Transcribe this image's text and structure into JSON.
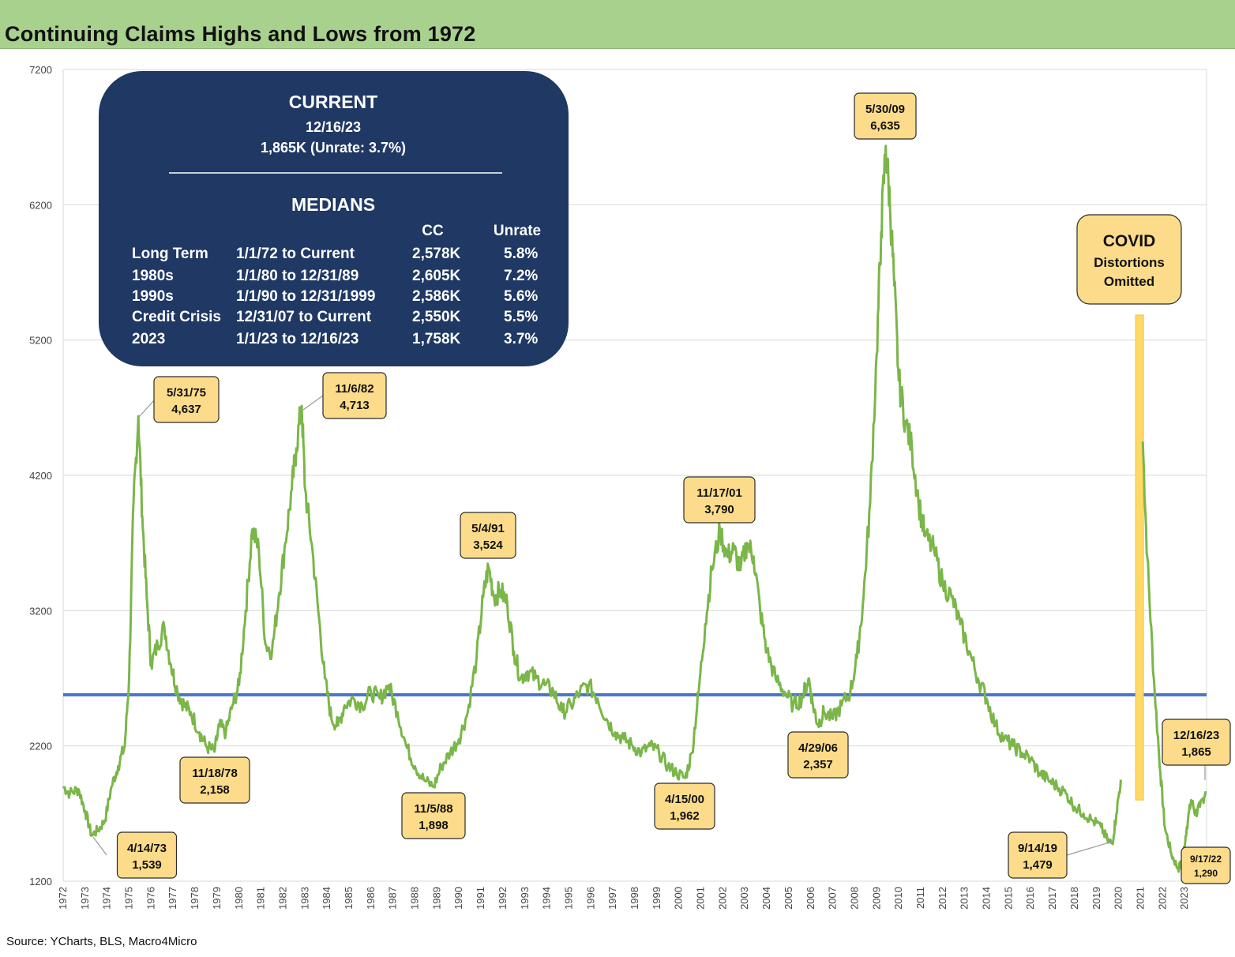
{
  "header": {
    "title": "Continuing Claims Highs and Lows from 1972"
  },
  "footer": {
    "source": "Source: YCharts, BLS, Macro4Micro"
  },
  "colors": {
    "line": "#7ab648",
    "median_line": "#4a72c4",
    "info_box": "#1f3864",
    "callout": "#fcdc8a",
    "title_bar": "#a9d18e"
  },
  "info_box": {
    "current_heading": "CURRENT",
    "current_date": "12/16/23",
    "current_value": "1,865K (Unrate: 3.7%)",
    "medians_heading": "MEDIANS",
    "col_cc": "CC",
    "col_unrate": "Unrate",
    "rows": [
      {
        "label": "Long Term",
        "period": "1/1/72 to Current",
        "cc": "2,578K",
        "unrate": "5.8%"
      },
      {
        "label": "1980s",
        "period": "1/1/80 to 12/31/89",
        "cc": "2,605K",
        "unrate": "7.2%"
      },
      {
        "label": "1990s",
        "period": "1/1/90 to 12/31/1999",
        "cc": "2,586K",
        "unrate": "5.6%"
      },
      {
        "label": "Credit Crisis",
        "period": "12/31/07 to Current",
        "cc": "2,550K",
        "unrate": "5.5%"
      },
      {
        "label": "2023",
        "period": "1/1/23 to 12/16/23",
        "cc": "1,758K",
        "unrate": "3.7%"
      }
    ]
  },
  "covid_note": {
    "line1": "COVID",
    "line2": "Distortions",
    "line3": "Omitted"
  },
  "annotations": [
    {
      "date": "4/14/73",
      "value": "1,539"
    },
    {
      "date": "5/31/75",
      "value": "4,637"
    },
    {
      "date": "11/18/78",
      "value": "2,158"
    },
    {
      "date": "11/6/82",
      "value": "4,713"
    },
    {
      "date": "11/5/88",
      "value": "1,898"
    },
    {
      "date": "5/4/91",
      "value": "3,524"
    },
    {
      "date": "4/15/00",
      "value": "1,962"
    },
    {
      "date": "11/17/01",
      "value": "3,790"
    },
    {
      "date": "4/29/06",
      "value": "2,357"
    },
    {
      "date": "5/30/09",
      "value": "6,635"
    },
    {
      "date": "9/14/19",
      "value": "1,479"
    },
    {
      "date": "9/17/22",
      "value": "1,290"
    },
    {
      "date": "12/16/23",
      "value": "1,865"
    }
  ],
  "chart_data": {
    "type": "line",
    "title": "Continuing Claims Highs and Lows from 1972",
    "ylim": [
      1200,
      7200
    ],
    "yticks": [
      1200,
      2200,
      3200,
      4200,
      5200,
      6200,
      7200
    ],
    "xlim": [
      1972,
      2024
    ],
    "xticks": [
      "1972",
      "1973",
      "1974",
      "1975",
      "1976",
      "1977",
      "1978",
      "1979",
      "1980",
      "1981",
      "1982",
      "1983",
      "1984",
      "1985",
      "1986",
      "1987",
      "1988",
      "1989",
      "1990",
      "1991",
      "1992",
      "1993",
      "1994",
      "1995",
      "1996",
      "1997",
      "1998",
      "1999",
      "2000",
      "2001",
      "2002",
      "2003",
      "2004",
      "2005",
      "2006",
      "2007",
      "2008",
      "2009",
      "2010",
      "2011",
      "2012",
      "2013",
      "2014",
      "2015",
      "2016",
      "2017",
      "2018",
      "2019",
      "2020",
      "2021",
      "2022",
      "2023"
    ],
    "median_line": 2578,
    "grid": "horizontal",
    "series": [
      {
        "x_pre": [
          1972.0,
          1972.3,
          1972.7,
          1973.0,
          1973.29,
          1973.6,
          1973.9,
          1974.2,
          1974.5,
          1974.8,
          1975.0,
          1975.2,
          1975.42,
          1975.6,
          1975.8,
          1976.0,
          1976.3,
          1976.6,
          1976.9,
          1977.2,
          1977.5,
          1977.8,
          1978.2,
          1978.5,
          1978.88,
          1979.1,
          1979.4,
          1979.7,
          1980.0,
          1980.3,
          1980.6,
          1980.9,
          1981.2,
          1981.5,
          1981.8,
          1982.1,
          1982.4,
          1982.6,
          1982.85,
          1983.0,
          1983.3,
          1983.6,
          1983.9,
          1984.2,
          1984.5,
          1984.8,
          1985.2,
          1985.6,
          1986.0,
          1986.4,
          1986.8,
          1987.2,
          1987.6,
          1988.0,
          1988.4,
          1988.85,
          1989.2,
          1989.6,
          1990.0,
          1990.4,
          1990.8,
          1991.1,
          1991.34,
          1991.6,
          1991.9,
          1992.2,
          1992.5,
          1992.8,
          1993.1,
          1993.5,
          1993.9,
          1994.3,
          1994.7,
          1995.1,
          1995.5,
          1995.9,
          1996.3,
          1996.7,
          1997.1,
          1997.5,
          1997.9,
          1998.3,
          1998.7,
          1999.1,
          1999.5,
          1999.9,
          2000.29,
          2000.6,
          2000.9,
          2001.2,
          2001.5,
          2001.88,
          2002.2,
          2002.5,
          2002.8,
          2003.1,
          2003.4,
          2003.7,
          2004.0,
          2004.4,
          2004.8,
          2005.2,
          2005.6,
          2005.9,
          2006.1,
          2006.33,
          2006.6,
          2007.0,
          2007.4,
          2007.8,
          2008.1,
          2008.4,
          2008.7,
          2009.0,
          2009.2,
          2009.41,
          2009.6,
          2009.8,
          2010.0,
          2010.3,
          2010.6,
          2010.9,
          2011.2,
          2011.6,
          2012.0,
          2012.4,
          2012.8,
          2013.2,
          2013.6,
          2014.0,
          2014.4,
          2014.8,
          2015.2,
          2015.6,
          2016.0,
          2016.4,
          2016.8,
          2017.2,
          2017.6,
          2018.0,
          2018.4,
          2018.8,
          2019.2,
          2019.5,
          2019.71,
          2019.9,
          2020.1
        ],
        "y_pre": [
          1900,
          1850,
          1880,
          1720,
          1539,
          1580,
          1650,
          1900,
          2050,
          2200,
          2700,
          4000,
          4637,
          3900,
          3300,
          2800,
          2950,
          3080,
          2800,
          2600,
          2500,
          2450,
          2300,
          2200,
          2158,
          2350,
          2300,
          2500,
          2650,
          3200,
          3800,
          3650,
          2950,
          2900,
          3300,
          3700,
          4100,
          4400,
          4713,
          4100,
          3700,
          3200,
          2700,
          2400,
          2350,
          2500,
          2550,
          2500,
          2600,
          2550,
          2650,
          2450,
          2200,
          2050,
          1950,
          1898,
          2050,
          2150,
          2250,
          2450,
          2850,
          3300,
          3524,
          3300,
          3350,
          3250,
          2900,
          2700,
          2750,
          2700,
          2650,
          2600,
          2450,
          2500,
          2600,
          2650,
          2550,
          2400,
          2300,
          2250,
          2200,
          2150,
          2200,
          2150,
          2050,
          2000,
          1962,
          2150,
          2600,
          3100,
          3500,
          3790,
          3600,
          3650,
          3500,
          3700,
          3600,
          3200,
          2900,
          2700,
          2600,
          2500,
          2550,
          2700,
          2500,
          2357,
          2450,
          2400,
          2500,
          2600,
          2850,
          3300,
          4000,
          5100,
          6000,
          6635,
          6200,
          5600,
          4900,
          4600,
          4400,
          4000,
          3750,
          3650,
          3400,
          3300,
          3100,
          2900,
          2700,
          2550,
          2350,
          2250,
          2200,
          2150,
          2100,
          2000,
          1950,
          1900,
          1850,
          1750,
          1700,
          1650,
          1600,
          1500,
          1479,
          1700,
          1950
        ],
        "x_post": [
          2021.1,
          2021.3,
          2021.6,
          2021.9,
          2022.1,
          2022.4,
          2022.71,
          2022.9,
          2023.1,
          2023.3,
          2023.5,
          2023.7,
          2023.96
        ],
        "y_post": [
          4450,
          3600,
          2700,
          2000,
          1600,
          1400,
          1290,
          1350,
          1600,
          1800,
          1700,
          1750,
          1865
        ]
      }
    ]
  }
}
